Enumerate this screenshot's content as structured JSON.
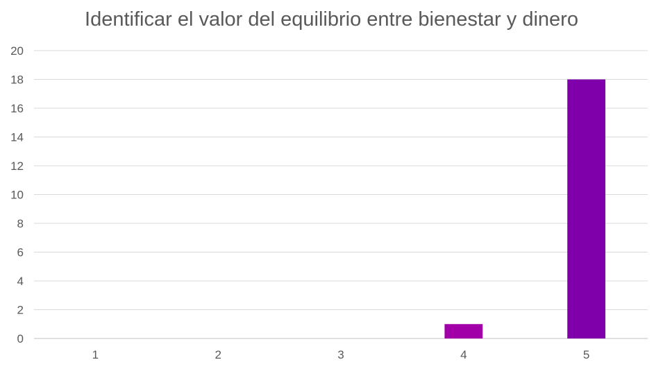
{
  "chart_data": {
    "type": "bar",
    "title": "Identificar el valor del equilibrio entre bienestar y dinero",
    "xlabel": "",
    "ylabel": "",
    "categories": [
      "1",
      "2",
      "3",
      "4",
      "5"
    ],
    "values": [
      0,
      0,
      0,
      1,
      18
    ],
    "ylim": [
      0,
      20
    ],
    "yticks": [
      0,
      2,
      4,
      6,
      8,
      10,
      12,
      14,
      16,
      18,
      20
    ],
    "grid": true,
    "legend": "none",
    "colors": [
      "#7f00aa",
      "#7f00aa",
      "#7f00aa",
      "#a100a8",
      "#7f00aa"
    ]
  }
}
